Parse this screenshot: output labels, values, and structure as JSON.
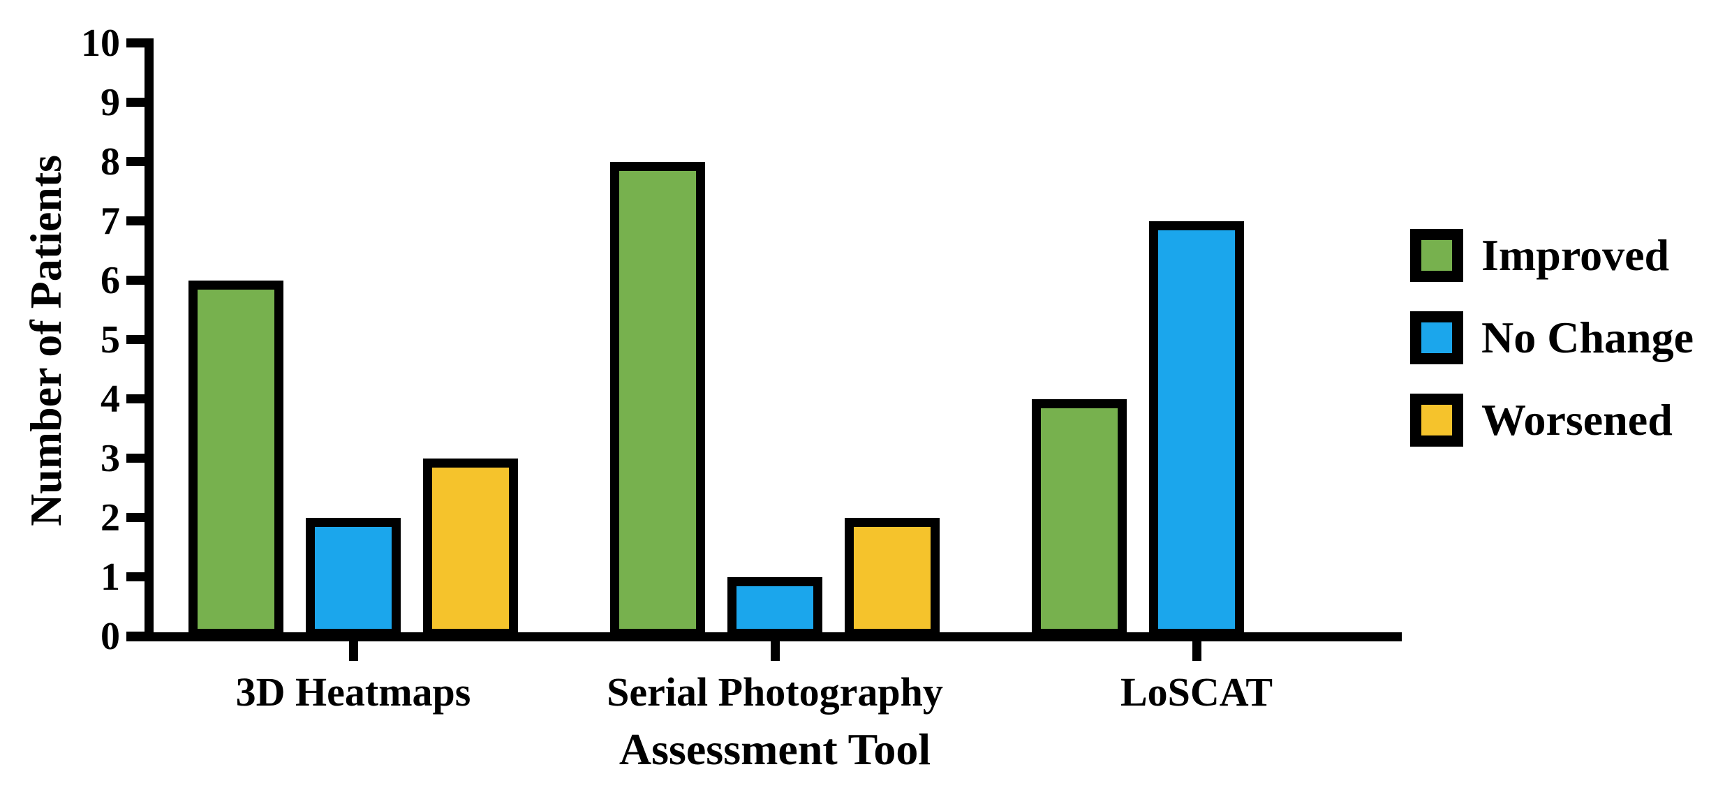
{
  "chart_data": {
    "type": "bar",
    "title": "",
    "xlabel": "Assessment Tool",
    "ylabel": "Number of Patients",
    "categories": [
      "3D Heatmaps",
      "Serial Photography",
      "LoSCAT"
    ],
    "series": [
      {
        "name": "Improved",
        "color": "#77B14E",
        "values": [
          6,
          8,
          4
        ]
      },
      {
        "name": "No Change",
        "color": "#1BA6EC",
        "values": [
          2,
          1,
          7
        ]
      },
      {
        "name": "Worsened",
        "color": "#F5C32C",
        "values": [
          3,
          2,
          0
        ]
      }
    ],
    "ylim": [
      0,
      10
    ],
    "ytick_step": 1,
    "grid": false,
    "legend_position": "right",
    "bar_border_color": "#000000",
    "axis_color": "#000000",
    "background_color": "#FFFFFF"
  }
}
